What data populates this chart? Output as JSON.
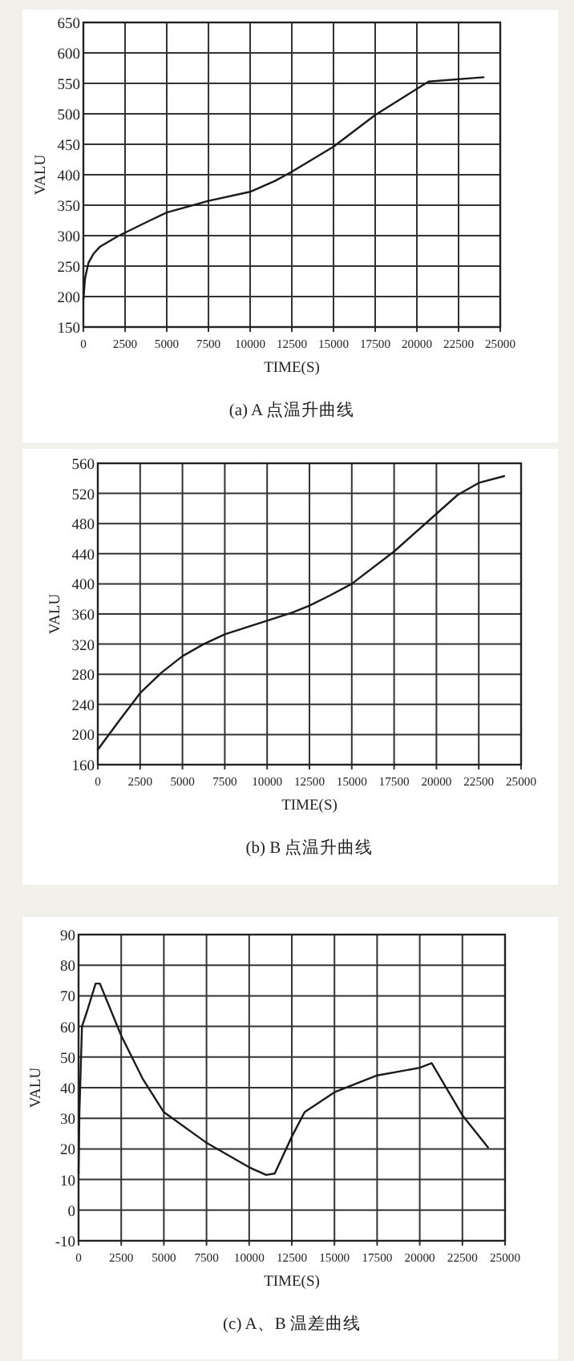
{
  "chart_data": [
    {
      "type": "line",
      "title": "(a) A 点温升曲线",
      "xlabel": "TIME(S)",
      "ylabel": "VALU",
      "color": "#1a1a1a",
      "grid": true,
      "xlim": [
        0,
        25000
      ],
      "xticks": [
        0,
        2500,
        5000,
        7500,
        10000,
        12500,
        15000,
        17500,
        20000,
        22500,
        25000
      ],
      "ylim": [
        150,
        650
      ],
      "yticks": [
        150,
        200,
        250,
        300,
        350,
        400,
        450,
        500,
        550,
        600,
        650
      ],
      "x": [
        0,
        100,
        300,
        600,
        1000,
        2000,
        2500,
        4000,
        5000,
        7500,
        10000,
        11500,
        12500,
        15000,
        17500,
        20700,
        24000
      ],
      "values": [
        195,
        230,
        255,
        270,
        282,
        298,
        305,
        325,
        338,
        357,
        372,
        390,
        405,
        446,
        498,
        553,
        560
      ]
    },
    {
      "type": "line",
      "title": "(b) B 点温升曲线",
      "xlabel": "TIME(S)",
      "ylabel": "VALU",
      "color": "#1a1a1a",
      "grid": true,
      "xlim": [
        0,
        25000
      ],
      "xticks": [
        0,
        2500,
        5000,
        7500,
        10000,
        12500,
        15000,
        17500,
        20000,
        22500,
        25000
      ],
      "ylim": [
        160,
        560
      ],
      "yticks": [
        160,
        200,
        240,
        280,
        320,
        360,
        400,
        440,
        480,
        520,
        560
      ],
      "x": [
        0,
        1250,
        2500,
        3750,
        5000,
        6250,
        7500,
        10000,
        11500,
        12500,
        13750,
        15000,
        17500,
        20000,
        21250,
        22500,
        24000
      ],
      "values": [
        180,
        218,
        255,
        282,
        304,
        320,
        333,
        351,
        362,
        371,
        385,
        400,
        443,
        493,
        518,
        534,
        543
      ]
    },
    {
      "type": "line",
      "title": "(c) A、B 温差曲线",
      "xlabel": "TIME(S)",
      "ylabel": "VALU",
      "color": "#1a1a1a",
      "grid": true,
      "xlim": [
        0,
        25000
      ],
      "xticks": [
        0,
        2500,
        5000,
        7500,
        10000,
        12500,
        15000,
        17500,
        20000,
        22500,
        25000
      ],
      "ylim": [
        -10,
        90
      ],
      "yticks": [
        -10,
        0,
        10,
        20,
        30,
        40,
        50,
        60,
        70,
        80,
        90
      ],
      "x": [
        0,
        50,
        200,
        500,
        1000,
        1250,
        2500,
        3750,
        5000,
        7500,
        10000,
        11000,
        11500,
        12500,
        13250,
        15000,
        17500,
        20000,
        20700,
        22500,
        24000
      ],
      "values": [
        12,
        32,
        60,
        65,
        74,
        74,
        57,
        43,
        32,
        22,
        14,
        11.5,
        12,
        24,
        32,
        38.5,
        44,
        46.5,
        48,
        31,
        20.5
      ]
    }
  ]
}
